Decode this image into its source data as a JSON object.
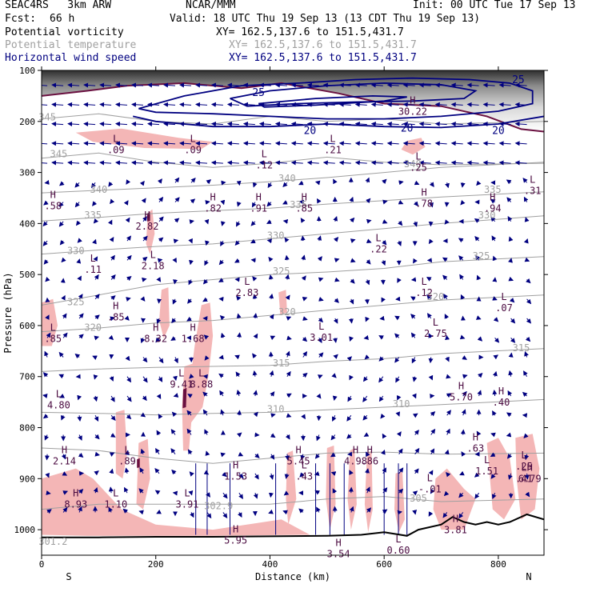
{
  "header": {
    "model": "SEAC4RS   3km ARW",
    "org": "NCAR/MMM",
    "init": "Init: 00 UTC Tue 17 Sep 13",
    "fcst_label": "Fcst:",
    "fcst_value": "66 h",
    "valid": "Valid: 18 UTC Thu 19 Sep 13 (13 CDT Thu 19 Sep 13)",
    "fields": [
      {
        "name": "Potential vorticity",
        "xy": "XY= 162.5,137.6 to 151.5,431.7",
        "color": "#000000"
      },
      {
        "name": "Potential temperature",
        "xy": "XY= 162.5,137.6 to 151.5,431.7",
        "color": "#a0a0a0"
      },
      {
        "name": "Horizontal wind speed",
        "xy": "XY= 162.5,137.6 to 151.5,431.7",
        "color": "#000080"
      }
    ]
  },
  "chart_data": {
    "type": "cross-section",
    "xlabel": "Distance (km)",
    "ylabel": "Pressure (hPa)",
    "xlim": [
      0,
      880
    ],
    "ylim": [
      100,
      1050
    ],
    "x_ticks": [
      0,
      200,
      400,
      600,
      800
    ],
    "y_ticks": [
      100,
      200,
      300,
      400,
      500,
      600,
      700,
      800,
      900,
      1000
    ],
    "x_end_labels": {
      "left": "S",
      "right": "N"
    },
    "colors": {
      "theta": "#a0a0a0",
      "wind": "#000080",
      "pv_shade": "#f4b6b6",
      "pv_line": "#6a1040",
      "terrain": "#000000",
      "hl": "#4a0a40"
    },
    "theta_contours": [
      {
        "label": "345",
        "x": 10,
        "p": 198
      },
      {
        "label": "345",
        "x": 30,
        "p": 270
      },
      {
        "label": "340",
        "x": 100,
        "p": 340
      },
      {
        "label": "340",
        "x": 430,
        "p": 318
      },
      {
        "label": "340",
        "x": 650,
        "p": 290
      },
      {
        "label": "335",
        "x": 90,
        "p": 390
      },
      {
        "label": "335",
        "x": 450,
        "p": 370
      },
      {
        "label": "335",
        "x": 790,
        "p": 340
      },
      {
        "label": "330",
        "x": 60,
        "p": 460
      },
      {
        "label": "330",
        "x": 410,
        "p": 430
      },
      {
        "label": "330",
        "x": 780,
        "p": 390
      },
      {
        "label": "325",
        "x": 60,
        "p": 560
      },
      {
        "label": "325",
        "x": 420,
        "p": 500
      },
      {
        "label": "325",
        "x": 770,
        "p": 470
      },
      {
        "label": "320",
        "x": 90,
        "p": 610
      },
      {
        "label": "320",
        "x": 430,
        "p": 580
      },
      {
        "label": "320",
        "x": 690,
        "p": 550
      },
      {
        "label": "315",
        "x": 420,
        "p": 680
      },
      {
        "label": "315",
        "x": 840,
        "p": 650
      },
      {
        "label": "310",
        "x": 410,
        "p": 770
      },
      {
        "label": "310",
        "x": 630,
        "p": 760
      },
      {
        "label": "302.9",
        "x": 310,
        "p": 960
      },
      {
        "label": "305",
        "x": 660,
        "p": 945
      },
      {
        "label": "301.2",
        "x": 20,
        "p": 1030
      }
    ],
    "wind_contours": [
      {
        "label": "25",
        "x": 380,
        "p": 150
      },
      {
        "label": "25",
        "x": 835,
        "p": 125
      },
      {
        "label": "20",
        "x": 470,
        "p": 225
      },
      {
        "label": "20",
        "x": 640,
        "p": 220
      },
      {
        "label": "20",
        "x": 800,
        "p": 225
      }
    ],
    "pv_extrema": [
      {
        "kind": "H",
        "value": ".58",
        "x": 20,
        "p": 350
      },
      {
        "kind": "L",
        "value": ".09",
        "x": 130,
        "p": 240
      },
      {
        "kind": "L",
        "value": ".09",
        "x": 265,
        "p": 240
      },
      {
        "kind": "H",
        "value": "2.82",
        "x": 185,
        "p": 390
      },
      {
        "kind": "L",
        "value": ".11",
        "x": 90,
        "p": 475
      },
      {
        "kind": "L",
        "value": "2.18",
        "x": 195,
        "p": 468
      },
      {
        "kind": "H",
        "value": ".82",
        "x": 300,
        "p": 355
      },
      {
        "kind": "H",
        "value": ".91",
        "x": 380,
        "p": 355
      },
      {
        "kind": "H",
        "value": ".85",
        "x": 460,
        "p": 355
      },
      {
        "kind": "L",
        "value": ".12",
        "x": 390,
        "p": 270
      },
      {
        "kind": "L",
        "value": ".21",
        "x": 510,
        "p": 240
      },
      {
        "kind": "H",
        "value": "30.22",
        "x": 650,
        "p": 165
      },
      {
        "kind": "L",
        "value": ".25",
        "x": 660,
        "p": 275
      },
      {
        "kind": "H",
        "value": ".78",
        "x": 670,
        "p": 345
      },
      {
        "kind": "H",
        "value": ".94",
        "x": 790,
        "p": 355
      },
      {
        "kind": "L",
        "value": ".31",
        "x": 860,
        "p": 320
      },
      {
        "kind": "L",
        "value": ".22",
        "x": 590,
        "p": 435
      },
      {
        "kind": "L",
        "value": "2.83",
        "x": 360,
        "p": 520
      },
      {
        "kind": "L",
        "value": ".12",
        "x": 670,
        "p": 520
      },
      {
        "kind": "L",
        "value": ".07",
        "x": 810,
        "p": 550
      },
      {
        "kind": "H",
        "value": ".85",
        "x": 130,
        "p": 568
      },
      {
        "kind": "L",
        "value": ".85",
        "x": 20,
        "p": 610
      },
      {
        "kind": "H",
        "value": "8.32",
        "x": 200,
        "p": 610
      },
      {
        "kind": "H",
        "value": "1.68",
        "x": 265,
        "p": 610
      },
      {
        "kind": "L",
        "value": "3.01",
        "x": 490,
        "p": 608
      },
      {
        "kind": "L",
        "value": "2.75",
        "x": 690,
        "p": 600
      },
      {
        "kind": "L",
        "value": "9.41",
        "x": 245,
        "p": 700
      },
      {
        "kind": "L",
        "value": "8.88",
        "x": 280,
        "p": 700
      },
      {
        "kind": "L",
        "value": "4.80",
        "x": 30,
        "p": 740
      },
      {
        "kind": "H",
        "value": "5.70",
        "x": 735,
        "p": 725
      },
      {
        "kind": "H",
        "value": ".40",
        "x": 805,
        "p": 735
      },
      {
        "kind": "H",
        "value": "2.14",
        "x": 40,
        "p": 850
      },
      {
        "kind": "L",
        "value": ".89",
        "x": 150,
        "p": 850
      },
      {
        "kind": "H",
        "value": "1.53",
        "x": 340,
        "p": 880
      },
      {
        "kind": "H",
        "value": "5.45",
        "x": 450,
        "p": 850
      },
      {
        "kind": "L",
        "value": ".43",
        "x": 460,
        "p": 880
      },
      {
        "kind": "H",
        "value": "4.98",
        "x": 550,
        "p": 850
      },
      {
        "kind": "H",
        "value": ".86",
        "x": 575,
        "p": 850
      },
      {
        "kind": "H",
        "value": ".63",
        "x": 760,
        "p": 825
      },
      {
        "kind": "L",
        "value": "1.51",
        "x": 780,
        "p": 870
      },
      {
        "kind": "L",
        "value": ".25",
        "x": 845,
        "p": 860
      },
      {
        "kind": "L",
        "value": "-.01",
        "x": 680,
        "p": 905
      },
      {
        "kind": "L",
        "value": ".41",
        "x": 845,
        "p": 885
      },
      {
        "kind": "H",
        "value": "6.79",
        "x": 855,
        "p": 885
      },
      {
        "kind": "H",
        "value": "8.93",
        "x": 60,
        "p": 935
      },
      {
        "kind": "L",
        "value": "1.10",
        "x": 130,
        "p": 935
      },
      {
        "kind": "L",
        "value": "3.91",
        "x": 255,
        "p": 935
      },
      {
        "kind": "H",
        "value": "5.95",
        "x": 340,
        "p": 1005
      },
      {
        "kind": "H",
        "value": "3.81",
        "x": 725,
        "p": 985
      },
      {
        "kind": "H",
        "value": "3.54",
        "x": 520,
        "p": 1032
      },
      {
        "kind": "L",
        "value": "0.60",
        "x": 625,
        "p": 1025
      }
    ]
  }
}
